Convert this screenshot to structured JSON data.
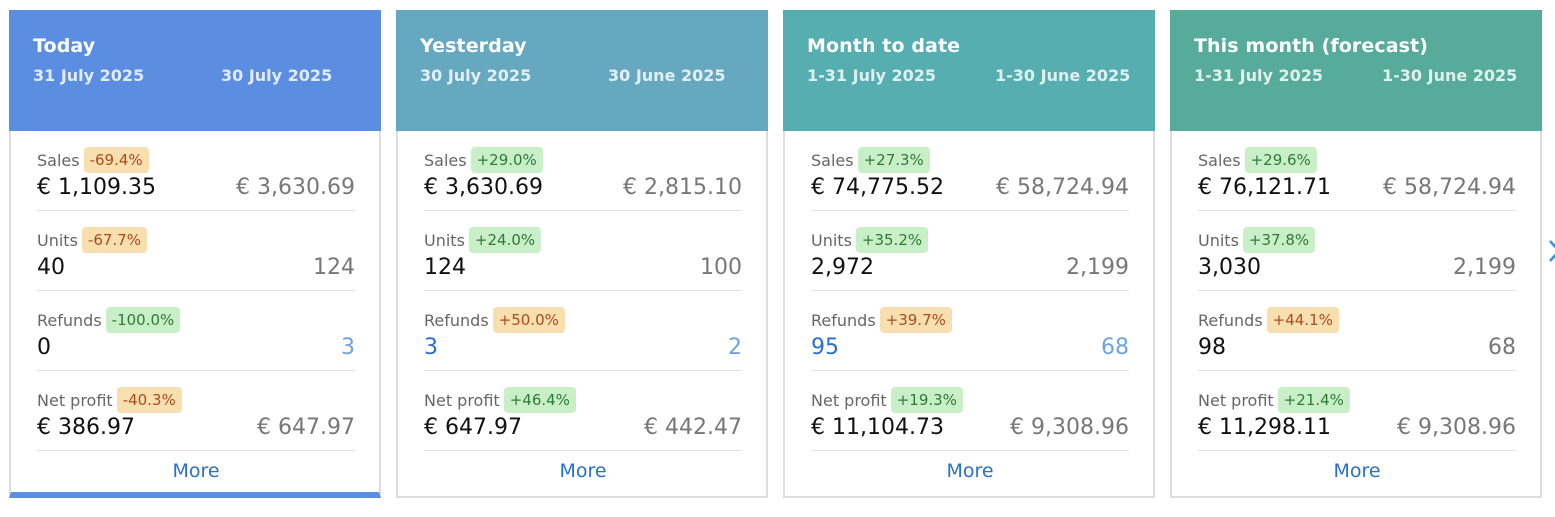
{
  "cards": [
    {
      "title": "Today",
      "date_current": "31 July 2025",
      "date_previous": "30 July 2025",
      "header_color": "#5b8ee0",
      "metrics": [
        {
          "label": "Sales",
          "change": "-69.4%",
          "change_type": "warn",
          "current": "€ 1,109.35",
          "previous": "€ 3,630.69"
        },
        {
          "label": "Units",
          "change": "-67.7%",
          "change_type": "warn",
          "current": "40",
          "previous": "124"
        },
        {
          "label": "Refunds",
          "change": "-100.0%",
          "change_type": "up",
          "current": "0",
          "previous": "3"
        },
        {
          "label": "Net profit",
          "change": "-40.3%",
          "change_type": "warn",
          "current": "€ 386.97",
          "previous": "€ 647.97"
        }
      ],
      "more_label": "More"
    },
    {
      "title": "Yesterday",
      "date_current": "30 July 2025",
      "date_previous": "30 June 2025",
      "header_color": "#66a8bf",
      "metrics": [
        {
          "label": "Sales",
          "change": "+29.0%",
          "change_type": "up",
          "current": "€ 3,630.69",
          "previous": "€ 2,815.10"
        },
        {
          "label": "Units",
          "change": "+24.0%",
          "change_type": "up",
          "current": "124",
          "previous": "100"
        },
        {
          "label": "Refunds",
          "change": "+50.0%",
          "change_type": "warn",
          "current": "3",
          "previous": "2"
        },
        {
          "label": "Net profit",
          "change": "+46.4%",
          "change_type": "up",
          "current": "€ 647.97",
          "previous": "€ 442.47"
        }
      ],
      "more_label": "More"
    },
    {
      "title": "Month to date",
      "date_current": "1-31 July 2025",
      "date_previous": "1-30 June 2025",
      "header_color": "#56aeb0",
      "metrics": [
        {
          "label": "Sales",
          "change": "+27.3%",
          "change_type": "up",
          "current": "€ 74,775.52",
          "previous": "€ 58,724.94"
        },
        {
          "label": "Units",
          "change": "+35.2%",
          "change_type": "up",
          "current": "2,972",
          "previous": "2,199"
        },
        {
          "label": "Refunds",
          "change": "+39.7%",
          "change_type": "warn",
          "current": "95",
          "previous": "68"
        },
        {
          "label": "Net profit",
          "change": "+19.3%",
          "change_type": "up",
          "current": "€ 11,104.73",
          "previous": "€ 9,308.96"
        }
      ],
      "more_label": "More"
    },
    {
      "title": "This month (forecast)",
      "date_current": "1-31 July 2025",
      "date_previous": "1-30 June 2025",
      "header_color": "#57ab9a",
      "metrics": [
        {
          "label": "Sales",
          "change": "+29.6%",
          "change_type": "up",
          "current": "€ 76,121.71",
          "previous": "€ 58,724.94"
        },
        {
          "label": "Units",
          "change": "+37.8%",
          "change_type": "up",
          "current": "3,030",
          "previous": "2,199"
        },
        {
          "label": "Refunds",
          "change": "+44.1%",
          "change_type": "warn",
          "current": "98",
          "previous": "68"
        },
        {
          "label": "Net profit",
          "change": "+21.4%",
          "change_type": "up",
          "current": "€ 11,298.11",
          "previous": "€ 9,308.96"
        }
      ],
      "more_label": "More"
    }
  ],
  "next_icon": "chevron-right-icon"
}
